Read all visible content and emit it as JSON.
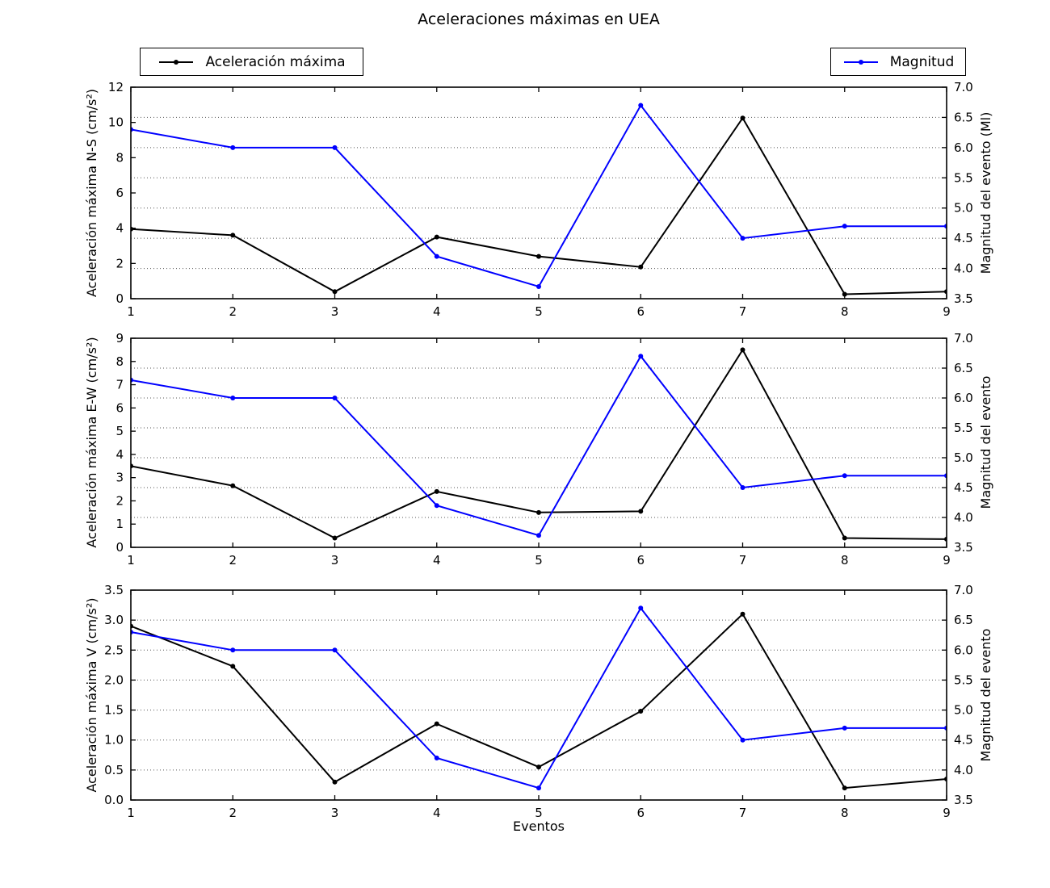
{
  "title": "Aceleraciones máximas en UEA",
  "xlabel": "Eventos",
  "colors": {
    "acceleration_line": "#000000",
    "magnitude_line": "#0000ff",
    "grid": "#555555",
    "frame": "#000000",
    "background": "#ffffff"
  },
  "legend": [
    {
      "label": "Aceleración máxima",
      "color": "#000000"
    },
    {
      "label": "Magnitud",
      "color": "#0000ff"
    }
  ],
  "chart_data": [
    {
      "type": "line",
      "id": "ns",
      "ylabel_left": "Aceleración máxima N-S (cm/s²)",
      "ylabel_right": "Magnitud del evento (Ml)",
      "ylim_left": [
        0,
        12
      ],
      "yticks_left": {
        "values": [
          0,
          2,
          4,
          6,
          8,
          10,
          12
        ],
        "labels": [
          "0",
          "2",
          "4",
          "6",
          "8",
          "10",
          "12"
        ]
      },
      "ylim_right": [
        3.5,
        7.0
      ],
      "yticks_right": {
        "values": [
          3.5,
          4.0,
          4.5,
          5.0,
          5.5,
          6.0,
          6.5,
          7.0
        ],
        "labels": [
          "3.5",
          "4.0",
          "4.5",
          "5.0",
          "5.5",
          "6.0",
          "6.5",
          "7.0"
        ]
      },
      "xlim": [
        1,
        9
      ],
      "x": [
        1,
        2,
        3,
        4,
        5,
        6,
        7,
        8,
        9
      ],
      "xtick_labels": [
        "1",
        "2",
        "3",
        "4",
        "5",
        "6",
        "7",
        "8",
        "9"
      ],
      "grid": "dotted horizontal lines at right-axis ticks",
      "series": [
        {
          "name": "Aceleración máxima",
          "slug": "aceleracion-maxima",
          "axis": "left",
          "color": "#000000",
          "values": [
            3.95,
            3.6,
            0.4,
            3.5,
            2.4,
            1.8,
            10.25,
            0.25,
            0.4
          ]
        },
        {
          "name": "Magnitud",
          "slug": "magnitud",
          "axis": "right",
          "color": "#0000ff",
          "values": [
            6.3,
            6.0,
            6.0,
            4.2,
            3.7,
            6.7,
            4.5,
            4.7,
            4.7
          ]
        }
      ]
    },
    {
      "type": "line",
      "id": "ew",
      "ylabel_left": "Aceleración máxima E-W (cm/s²)",
      "ylabel_right": "Magnitud del evento",
      "ylim_left": [
        0,
        9
      ],
      "yticks_left": {
        "values": [
          0,
          1,
          2,
          3,
          4,
          5,
          6,
          7,
          8,
          9
        ],
        "labels": [
          "0",
          "1",
          "2",
          "3",
          "4",
          "5",
          "6",
          "7",
          "8",
          "9"
        ]
      },
      "ylim_right": [
        3.5,
        7.0
      ],
      "yticks_right": {
        "values": [
          3.5,
          4.0,
          4.5,
          5.0,
          5.5,
          6.0,
          6.5,
          7.0
        ],
        "labels": [
          "3.5",
          "4.0",
          "4.5",
          "5.0",
          "5.5",
          "6.0",
          "6.5",
          "7.0"
        ]
      },
      "xlim": [
        1,
        9
      ],
      "x": [
        1,
        2,
        3,
        4,
        5,
        6,
        7,
        8,
        9
      ],
      "xtick_labels": [
        "1",
        "2",
        "3",
        "4",
        "5",
        "6",
        "7",
        "8",
        "9"
      ],
      "grid": "dotted horizontal lines at right-axis ticks",
      "series": [
        {
          "name": "Aceleración máxima",
          "slug": "aceleracion-maxima",
          "axis": "left",
          "color": "#000000",
          "values": [
            3.5,
            2.65,
            0.4,
            2.4,
            1.5,
            1.55,
            8.5,
            0.4,
            0.35
          ]
        },
        {
          "name": "Magnitud",
          "slug": "magnitud",
          "axis": "right",
          "color": "#0000ff",
          "values": [
            6.3,
            6.0,
            6.0,
            4.2,
            3.7,
            6.7,
            4.5,
            4.7,
            4.7
          ]
        }
      ]
    },
    {
      "type": "line",
      "id": "v",
      "ylabel_left": "Aceleración máxima V (cm/s²)",
      "ylabel_right": "Magnitud del evento",
      "ylim_left": [
        0,
        3.5
      ],
      "yticks_left": {
        "values": [
          0,
          0.5,
          1.0,
          1.5,
          2.0,
          2.5,
          3.0,
          3.5
        ],
        "labels": [
          "0.0",
          "0.5",
          "1.0",
          "1.5",
          "2.0",
          "2.5",
          "3.0",
          "3.5"
        ]
      },
      "ylim_right": [
        3.5,
        7.0
      ],
      "yticks_right": {
        "values": [
          3.5,
          4.0,
          4.5,
          5.0,
          5.5,
          6.0,
          6.5,
          7.0
        ],
        "labels": [
          "3.5",
          "4.0",
          "4.5",
          "5.0",
          "5.5",
          "6.0",
          "6.5",
          "7.0"
        ]
      },
      "xlim": [
        1,
        9
      ],
      "x": [
        1,
        2,
        3,
        4,
        5,
        6,
        7,
        8,
        9
      ],
      "xtick_labels": [
        "1",
        "2",
        "3",
        "4",
        "5",
        "6",
        "7",
        "8",
        "9"
      ],
      "grid": "dotted horizontal lines at right-axis ticks",
      "series": [
        {
          "name": "Aceleración máxima",
          "slug": "aceleracion-maxima",
          "axis": "left",
          "color": "#000000",
          "values": [
            2.9,
            2.23,
            0.3,
            1.27,
            0.55,
            1.48,
            3.1,
            0.2,
            0.35
          ]
        },
        {
          "name": "Magnitud",
          "slug": "magnitud",
          "axis": "right",
          "color": "#0000ff",
          "values": [
            6.3,
            6.0,
            6.0,
            4.2,
            3.7,
            6.7,
            4.5,
            4.7,
            4.7
          ]
        }
      ]
    }
  ]
}
